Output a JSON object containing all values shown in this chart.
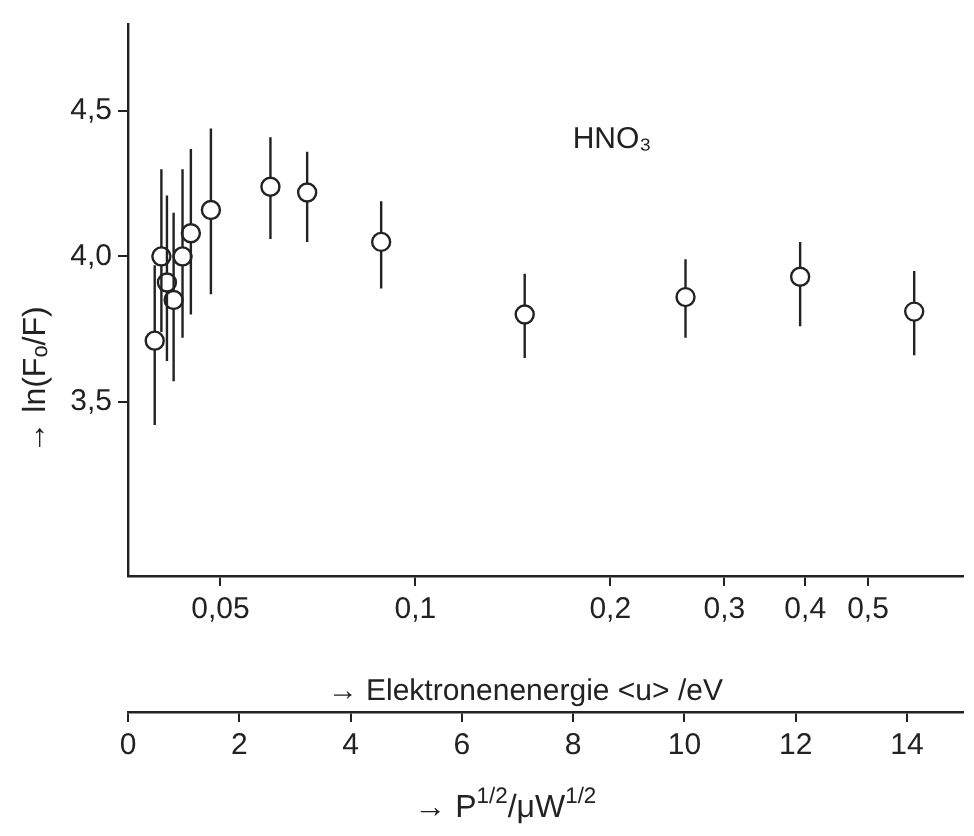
{
  "chart_data": {
    "type": "scatter",
    "xlabel": "→ P$^{1/2}$/μW$^{1/2}$",
    "ylabel": "→ ln(Fₒ/F)",
    "x2label": "→ Elektronenenergie <u> /eV",
    "annotations": [
      "HNO₃"
    ],
    "x": [
      0.48,
      0.6,
      0.7,
      0.82,
      0.98,
      1.13,
      1.49,
      2.56,
      3.22,
      4.55,
      7.13,
      10.02,
      12.08,
      14.13
    ],
    "series": [
      {
        "color": "#222222",
        "values": [
          3.71,
          4.0,
          3.91,
          3.85,
          4.0,
          4.08,
          4.16,
          4.24,
          4.22,
          4.05,
          3.8,
          3.86,
          3.93,
          3.81
        ],
        "errors": [
          [
            3.42,
            3.97
          ],
          [
            3.74,
            4.3
          ],
          [
            3.64,
            4.21
          ],
          [
            3.57,
            4.15
          ],
          [
            3.72,
            4.3
          ],
          [
            3.8,
            4.37
          ],
          [
            3.87,
            4.44
          ],
          [
            4.06,
            4.41
          ],
          [
            4.05,
            4.36
          ],
          [
            3.89,
            4.19
          ],
          [
            3.65,
            3.94
          ],
          [
            3.72,
            3.99
          ],
          [
            3.76,
            4.05
          ],
          [
            3.66,
            3.95
          ]
        ]
      }
    ],
    "marker": "circle",
    "grid": false,
    "legend": false,
    "log": "x2",
    "xlim": [
      0,
      15
    ],
    "xticks": [
      0,
      2,
      4,
      6,
      8,
      10,
      12,
      14
    ],
    "x2lim": [
      0.036,
      0.7
    ],
    "x2ticks": [
      {
        "value": 0.05,
        "label": "0,05"
      },
      {
        "value": 0.1,
        "label": "0,1"
      },
      {
        "value": 0.2,
        "label": "0,2"
      },
      {
        "value": 0.3,
        "label": "0,3"
      },
      {
        "value": 0.4,
        "label": "0,4"
      },
      {
        "value": 0.5,
        "label": "0,5"
      }
    ],
    "ylim": [
      2.9,
      4.8
    ],
    "yticks": [
      {
        "value": 3.5,
        "label": "3,5"
      },
      {
        "value": 4.0,
        "label": "4,0"
      },
      {
        "value": 4.5,
        "label": "4,5"
      }
    ]
  }
}
